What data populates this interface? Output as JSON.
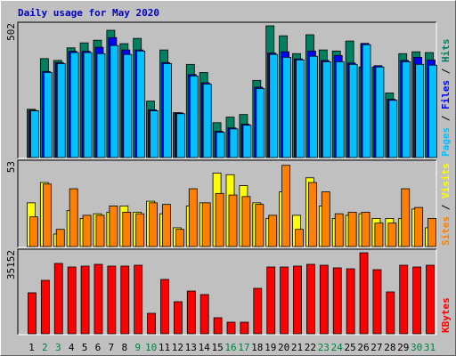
{
  "chart_data": [
    {
      "type": "bar",
      "title": "Daily usage for May 2020",
      "ylim": [
        0,
        502
      ],
      "yticks": [
        502
      ],
      "series": [
        {
          "name": "Hits",
          "color": "#008060",
          "values": [
            184,
            377,
            370,
            418,
            437,
            447,
            485,
            434,
            454,
            215,
            410,
            171,
            355,
            324,
            133,
            154,
            164,
            294,
            502,
            464,
            396,
            468,
            410,
            406,
            444,
            345,
            345,
            246,
            396,
            403,
            400
          ]
        },
        {
          "name": "Files",
          "color": "#0000ff",
          "values": [
            180,
            328,
            362,
            405,
            405,
            420,
            457,
            410,
            410,
            182,
            362,
            170,
            316,
            285,
            100,
            113,
            127,
            268,
            398,
            403,
            376,
            406,
            370,
            389,
            360,
            435,
            350,
            222,
            370,
            382,
            372
          ]
        },
        {
          "name": "Pages",
          "color": "#00c0ff",
          "values": [
            178,
            324,
            358,
            400,
            400,
            396,
            427,
            393,
            406,
            178,
            358,
            167,
            311,
            280,
            96,
            109,
            123,
            263,
            393,
            382,
            372,
            386,
            365,
            365,
            355,
            430,
            345,
            218,
            365,
            355,
            352
          ]
        }
      ]
    },
    {
      "type": "bar",
      "ylim": [
        0,
        53
      ],
      "yticks": [
        53
      ],
      "series": [
        {
          "name": "Visits",
          "color": "#ffff00",
          "values": [
            28,
            41,
            8,
            23,
            18,
            21,
            22,
            26,
            22,
            29,
            21,
            12,
            26,
            28,
            47,
            46,
            39,
            28,
            18,
            35,
            20,
            44,
            26,
            18,
            20,
            21,
            18,
            18,
            18,
            24,
            12
          ]
        },
        {
          "name": "Sites",
          "color": "#ff8000",
          "values": [
            19,
            40,
            11,
            37,
            20,
            20,
            26,
            22,
            21,
            28,
            27,
            11,
            37,
            28,
            34,
            33,
            32,
            27,
            20,
            52,
            11,
            41,
            35,
            21,
            22,
            22,
            15,
            15,
            37,
            25,
            18
          ]
        }
      ]
    },
    {
      "type": "bar",
      "ylim": [
        0,
        35152
      ],
      "yticks": [
        35152
      ],
      "categories": [
        "1",
        "2",
        "3",
        "4",
        "5",
        "6",
        "7",
        "8",
        "9",
        "10",
        "11",
        "12",
        "13",
        "14",
        "15",
        "16",
        "17",
        "18",
        "19",
        "20",
        "21",
        "22",
        "23",
        "24",
        "25",
        "26",
        "27",
        "28",
        "29",
        "30",
        "31"
      ],
      "category_colors": [
        "#000000",
        "#008040",
        "#008040",
        "#000000",
        "#000000",
        "#000000",
        "#000000",
        "#000000",
        "#008040",
        "#008040",
        "#000000",
        "#000000",
        "#000000",
        "#000000",
        "#000000",
        "#008040",
        "#008040",
        "#000000",
        "#000000",
        "#000000",
        "#000000",
        "#000000",
        "#008040",
        "#008040",
        "#000000",
        "#000000",
        "#000000",
        "#000000",
        "#000000",
        "#008040",
        "#008040"
      ],
      "series": [
        {
          "name": "KBytes",
          "color": "#ff0000",
          "values": [
            17770,
            23180,
            30520,
            28970,
            29360,
            30130,
            29360,
            29360,
            29740,
            8880,
            23560,
            13910,
            18540,
            17000,
            6950,
            5020,
            5020,
            19700,
            28970,
            28970,
            29360,
            30130,
            29740,
            28590,
            28200,
            35152,
            27810,
            18160,
            29740,
            28970,
            29740
          ]
        }
      ]
    }
  ]
}
